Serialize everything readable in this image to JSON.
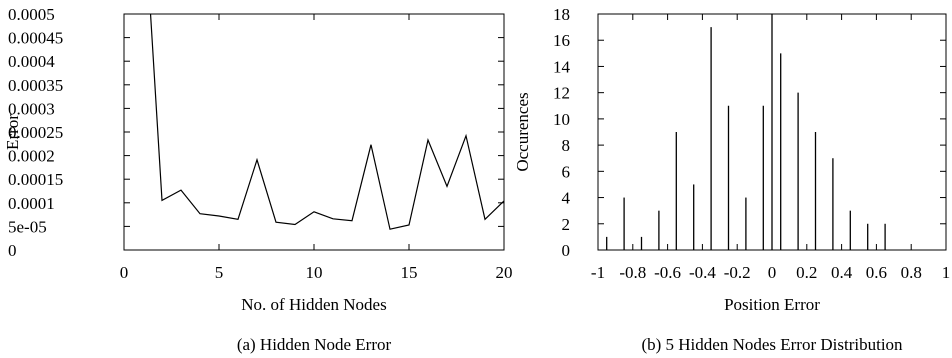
{
  "chart_data": [
    {
      "type": "line",
      "caption": "(a) Hidden Node Error",
      "title": "",
      "xlabel": "No. of Hidden Nodes",
      "ylabel": "Error",
      "xlim": [
        0,
        20
      ],
      "ylim": [
        0,
        0.0005
      ],
      "grid": false,
      "xticks": [
        "0",
        "5",
        "10",
        "15",
        "20"
      ],
      "xtick_values": [
        0,
        5,
        10,
        15,
        20
      ],
      "yticks": [
        "0",
        "5e-05",
        "0.0001",
        "0.00015",
        "0.0002",
        "0.00025",
        "0.0003",
        "0.00035",
        "0.0004",
        "0.00045",
        "0.0005"
      ],
      "ytick_values": [
        0,
        5e-05,
        0.0001,
        0.00015,
        0.0002,
        0.00025,
        0.0003,
        0.00035,
        0.0004,
        0.00045,
        0.0005
      ],
      "series": [
        {
          "x": [
            1,
            2,
            3,
            4,
            5,
            6,
            7,
            8,
            9,
            10,
            11,
            12,
            13,
            14,
            15,
            16,
            17,
            18,
            19,
            20
          ],
          "y": [
            0.00076,
            0.000105,
            0.000127,
            7.7e-05,
            7.2e-05,
            6.5e-05,
            0.000191,
            5.9e-05,
            5.4e-05,
            8.1e-05,
            6.6e-05,
            6.2e-05,
            0.000223,
            4.4e-05,
            5.3e-05,
            0.000233,
            0.000135,
            0.000242,
            6.5e-05,
            0.000104
          ]
        }
      ]
    },
    {
      "type": "bar",
      "caption": "(b) 5 Hidden Nodes Error Distribution",
      "title": "",
      "xlabel": "Position Error",
      "ylabel": "Occurences",
      "xlim": [
        -1,
        1
      ],
      "ylim": [
        0,
        18
      ],
      "grid": false,
      "xticks": [
        "-1",
        "-0.8",
        "-0.6",
        "-0.4",
        "-0.2",
        "0",
        "0.2",
        "0.4",
        "0.6",
        "0.8",
        "1"
      ],
      "xtick_values": [
        -1,
        -0.8,
        -0.6,
        -0.4,
        -0.2,
        0,
        0.2,
        0.4,
        0.6,
        0.8,
        1
      ],
      "yticks": [
        "0",
        "2",
        "4",
        "6",
        "8",
        "10",
        "12",
        "14",
        "16",
        "18"
      ],
      "ytick_values": [
        0,
        2,
        4,
        6,
        8,
        10,
        12,
        14,
        16,
        18
      ],
      "series": [
        {
          "x": [
            -0.95,
            -0.85,
            -0.75,
            -0.65,
            -0.55,
            -0.45,
            -0.35,
            -0.25,
            -0.15,
            -0.05,
            0.0,
            0.05,
            0.15,
            0.25,
            0.35,
            0.45,
            0.55,
            0.65,
            0.75,
            0.85,
            0.95
          ],
          "values": [
            1,
            4,
            1,
            3,
            9,
            5,
            17,
            11,
            4,
            11,
            18,
            15,
            12,
            9,
            7,
            3,
            2,
            2,
            0,
            0,
            0
          ]
        }
      ]
    }
  ]
}
